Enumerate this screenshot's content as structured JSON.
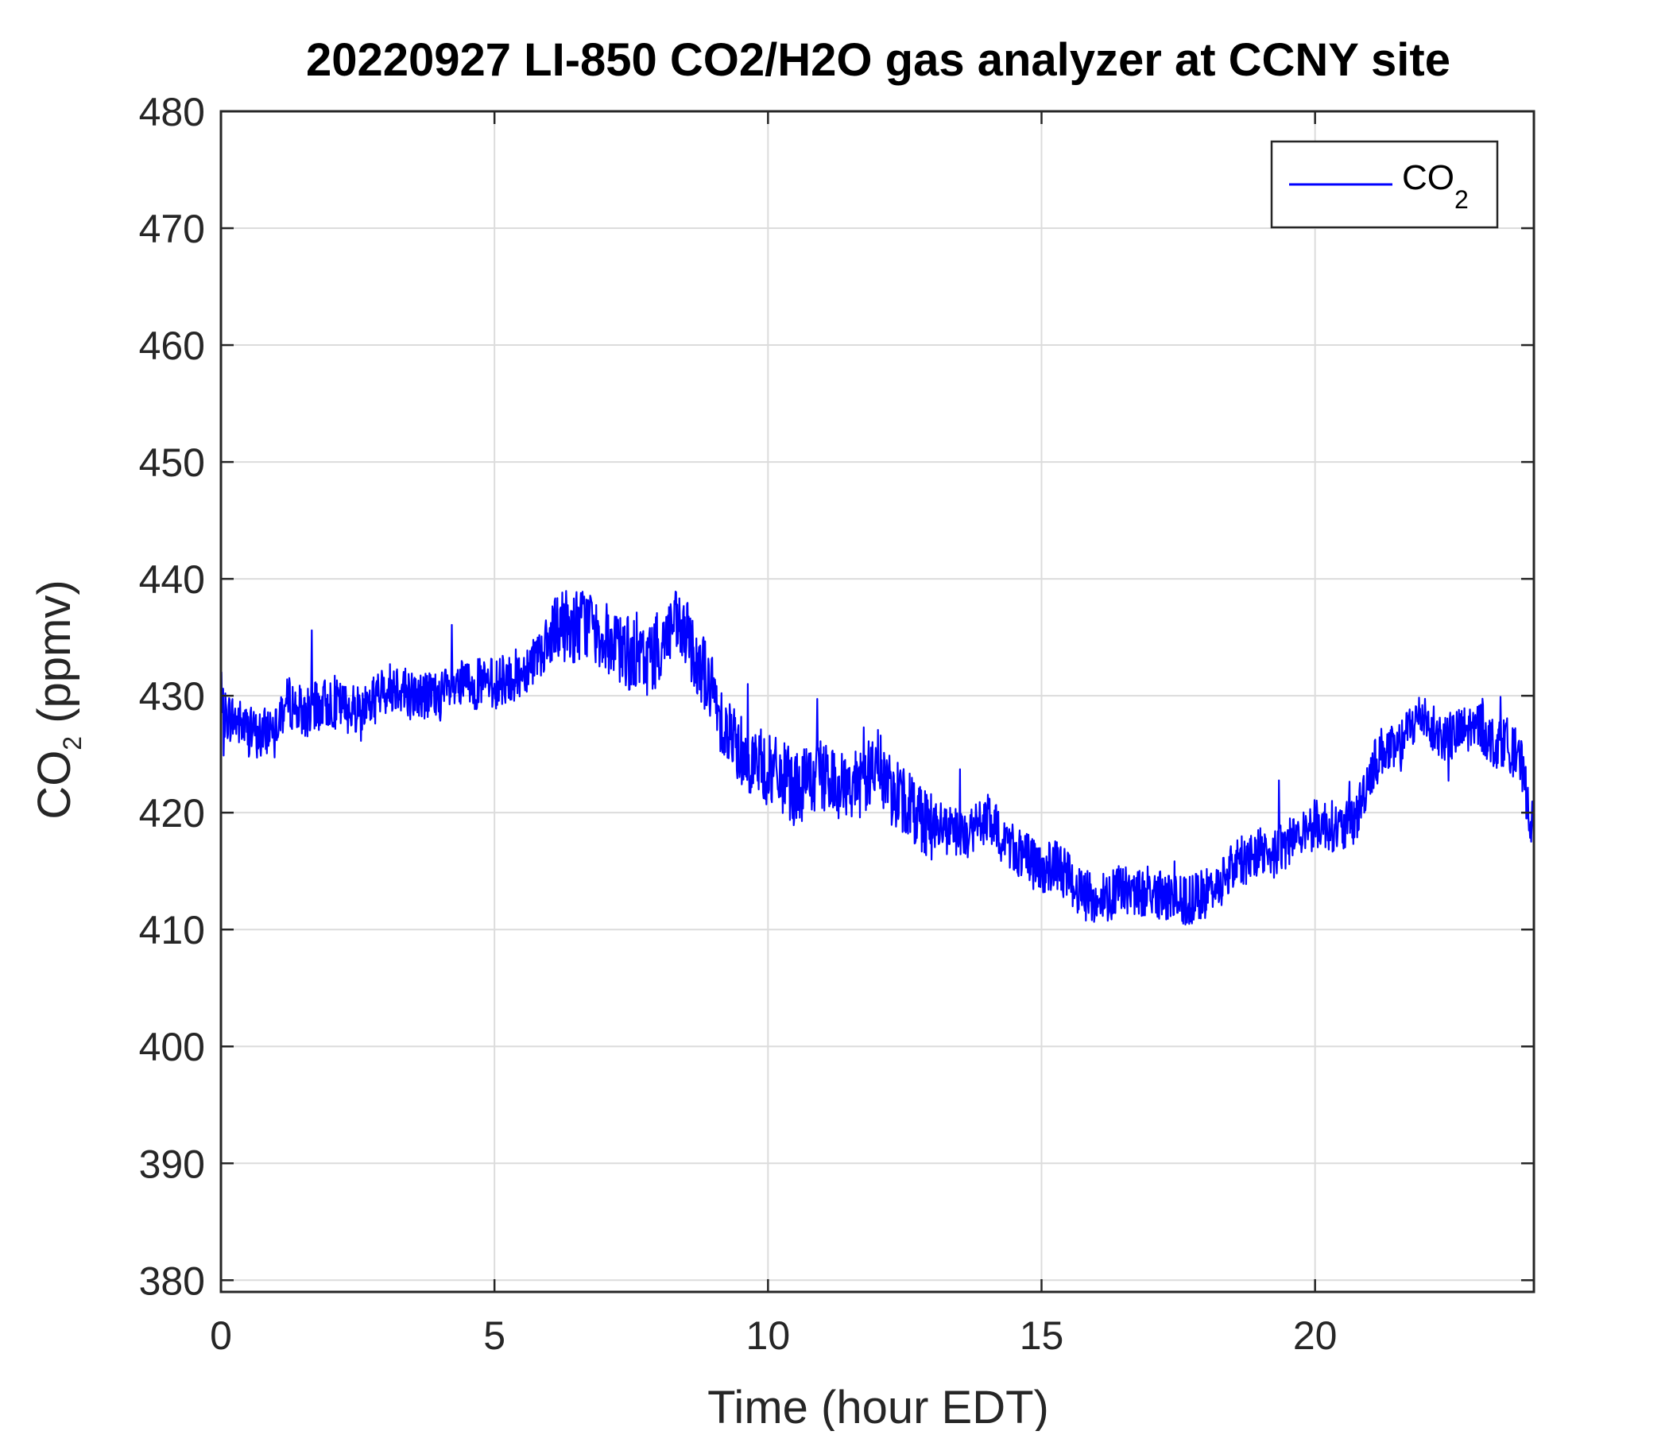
{
  "chart_data": {
    "type": "line",
    "title": "20220927 LI-850 CO2/H2O gas analyzer at CCNY site",
    "xlabel": "Time (hour EDT)",
    "ylabel": {
      "main": "CO",
      "sub": "2",
      "rest": " (ppmv)"
    },
    "xlim": [
      0,
      24
    ],
    "ylim": [
      379,
      480
    ],
    "xticks": [
      0,
      5,
      10,
      15,
      20
    ],
    "yticks": [
      380,
      390,
      400,
      410,
      420,
      430,
      440,
      450,
      460,
      470,
      480
    ],
    "grid": true,
    "legend": {
      "placement": "top-right",
      "main": "CO",
      "sub": "2"
    },
    "series": [
      {
        "name": "CO2",
        "color": "#0000ff",
        "x": [
          0,
          0.25,
          0.5,
          0.75,
          1,
          1.25,
          1.5,
          1.75,
          2,
          2.25,
          2.5,
          2.75,
          3,
          3.25,
          3.5,
          3.75,
          4,
          4.25,
          4.5,
          4.75,
          5,
          5.25,
          5.5,
          5.75,
          6,
          6.25,
          6.5,
          6.75,
          7,
          7.25,
          7.5,
          7.75,
          8,
          8.25,
          8.5,
          8.75,
          9,
          9.25,
          9.5,
          9.75,
          10,
          10.25,
          10.5,
          10.75,
          11,
          11.25,
          11.5,
          11.75,
          12,
          12.25,
          12.5,
          12.75,
          13,
          13.25,
          13.5,
          13.75,
          14,
          14.25,
          14.5,
          14.75,
          15,
          15.25,
          15.5,
          15.75,
          16,
          16.25,
          16.5,
          16.75,
          17,
          17.25,
          17.5,
          17.75,
          18,
          18.25,
          18.5,
          18.75,
          19,
          19.25,
          19.5,
          19.75,
          20,
          20.25,
          20.5,
          20.75,
          21,
          21.25,
          21.5,
          21.75,
          22,
          22.25,
          22.5,
          22.75,
          23,
          23.25,
          23.5,
          23.75,
          24
        ],
        "values": [
          428.5,
          428,
          427,
          426.5,
          428,
          429.5,
          428.5,
          429,
          429.5,
          429,
          429,
          429.5,
          430.5,
          431,
          430,
          430,
          430,
          430.5,
          431,
          431,
          431,
          431.5,
          432,
          433.5,
          434.5,
          436,
          436,
          436.5,
          435,
          434,
          433.5,
          433,
          434,
          436,
          435,
          433,
          430,
          427,
          425.5,
          424.5,
          423.5,
          423,
          422,
          422.5,
          423,
          422.5,
          422,
          423,
          424,
          422,
          421,
          420,
          419,
          418.5,
          418,
          418.5,
          419.5,
          418,
          417,
          416,
          415,
          415.5,
          414.5,
          413,
          412.5,
          413,
          413.5,
          413,
          413.5,
          412.5,
          412.5,
          412.5,
          413,
          414,
          415.5,
          416,
          417,
          416.5,
          417.5,
          418.5,
          419,
          419,
          418.5,
          419.5,
          423.5,
          425.5,
          425,
          427.5,
          428.5,
          426.5,
          426.5,
          427,
          427.5,
          426,
          426,
          424.5,
          418
        ]
      }
    ]
  }
}
